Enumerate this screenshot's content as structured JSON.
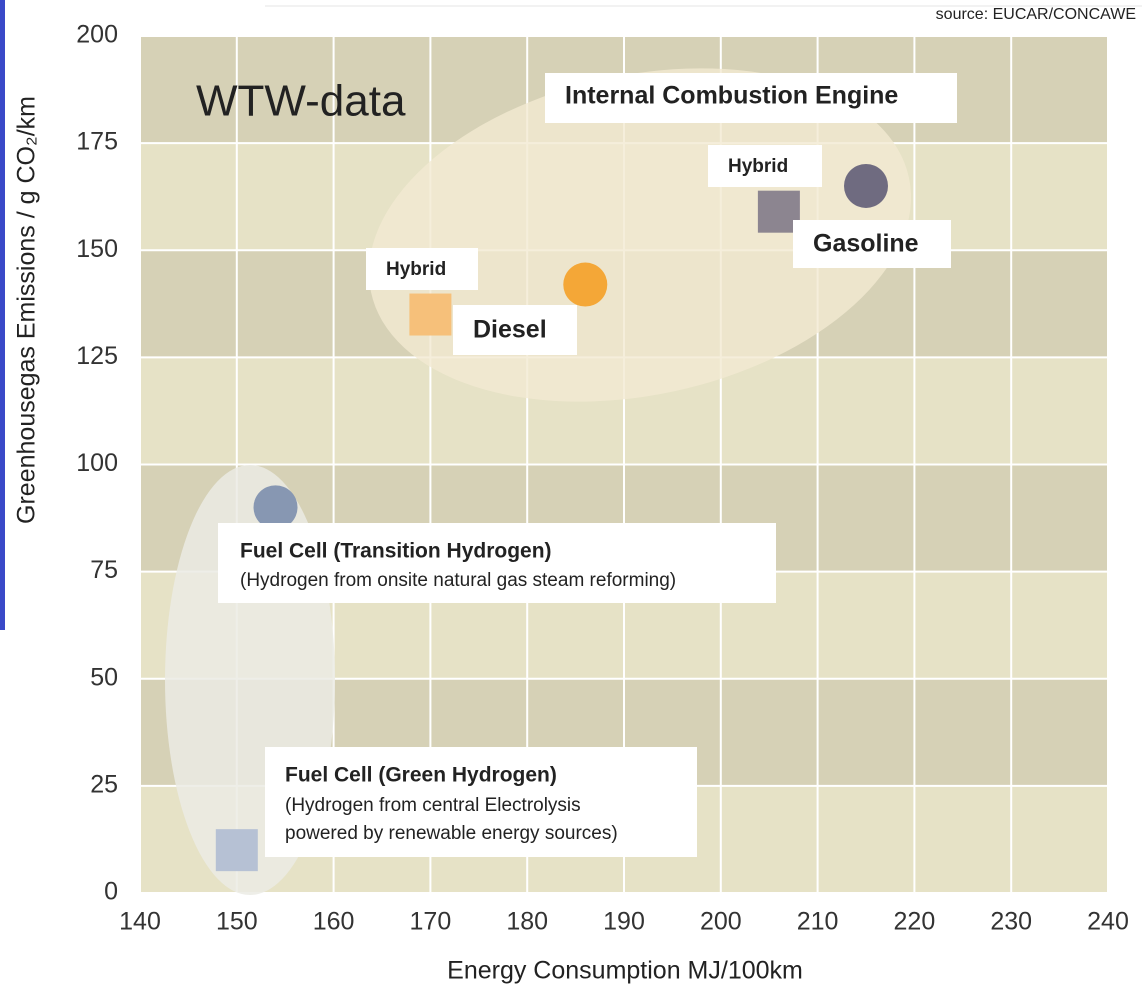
{
  "chart_data": {
    "type": "scatter",
    "title": "WTW-data",
    "source": "source: EUCAR/CONCAWE",
    "xlabel": "Energy Consumption MJ/100km",
    "ylabel": "Greenhousegas Emissions / g CO₂/km",
    "x": [
      215,
      206,
      186,
      170,
      154,
      150
    ],
    "values": [
      165,
      159,
      142,
      135,
      90,
      10
    ],
    "colors": [
      "#6f6b80",
      "#8c8590",
      "#f4a737",
      "#f6c07a",
      "#8797b2",
      "#b6c1d4"
    ],
    "markers": [
      "circle",
      "square",
      "circle",
      "square",
      "circle",
      "square"
    ],
    "xlim": [
      140,
      240
    ],
    "xticks": [
      140,
      150,
      160,
      170,
      180,
      190,
      200,
      210,
      220,
      230,
      240
    ],
    "ylim": [
      0,
      200
    ],
    "yticks": [
      0,
      25,
      50,
      75,
      100,
      125,
      150,
      175,
      200
    ],
    "grid": true,
    "annotations": [
      "Internal Combustion Engine",
      "Hybrid",
      "Gasoline",
      "Hybrid",
      "Diesel",
      "Fuel Cell (Transition Hydrogen)",
      "(Hydrogen from onsite natural gas steam reforming)",
      "Fuel Cell (Green Hydrogen)",
      "(Hydrogen from central Electrolysis",
      "powered by renewable energy sources)"
    ]
  }
}
